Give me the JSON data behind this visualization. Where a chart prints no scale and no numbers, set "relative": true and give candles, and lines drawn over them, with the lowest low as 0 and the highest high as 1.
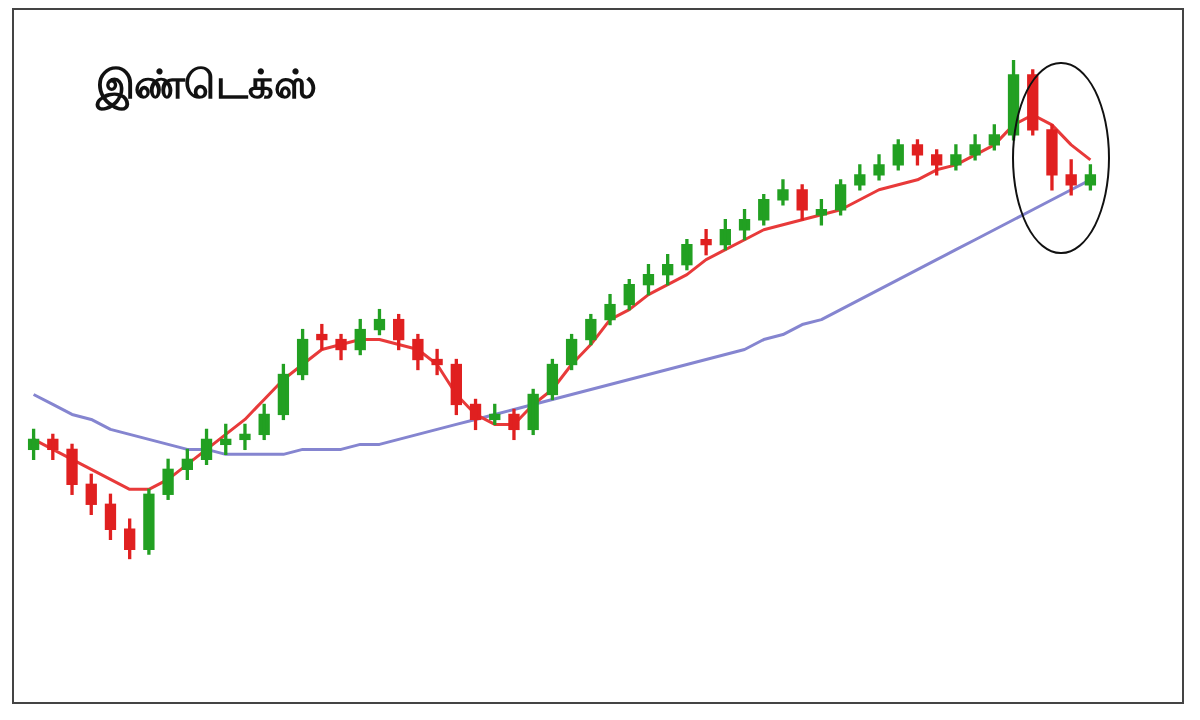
{
  "chart_data": {
    "type": "candlestick",
    "title": "இண்டெக்ஸ்",
    "relative": true,
    "categories": [
      null,
      null,
      null,
      null,
      null,
      null,
      null,
      null,
      null,
      null,
      null,
      null,
      null,
      null,
      null,
      null,
      null,
      null,
      null,
      null,
      null,
      null,
      null,
      null,
      null,
      null,
      null,
      null,
      null,
      null,
      null,
      null,
      null,
      null,
      null,
      null,
      null,
      null,
      null,
      null,
      null,
      null,
      null,
      null,
      null,
      null,
      null,
      null,
      null,
      null,
      null,
      null,
      null,
      null,
      null,
      null
    ],
    "series": [
      {
        "type": "candlestick",
        "ohlc": [
          [
            0.22,
            0.26,
            0.2,
            0.24
          ],
          [
            0.24,
            0.25,
            0.2,
            0.22
          ],
          [
            0.22,
            0.23,
            0.13,
            0.15
          ],
          [
            0.15,
            0.17,
            0.09,
            0.11
          ],
          [
            0.11,
            0.13,
            0.04,
            0.06
          ],
          [
            0.06,
            0.08,
            0,
            0.02
          ],
          [
            0.02,
            0.14,
            0.01,
            0.13
          ],
          [
            0.13,
            0.2,
            0.12,
            0.18
          ],
          [
            0.18,
            0.22,
            0.16,
            0.2
          ],
          [
            0.2,
            0.26,
            0.19,
            0.24
          ],
          [
            0.23,
            0.27,
            0.21,
            0.24
          ],
          [
            0.24,
            0.27,
            0.22,
            0.25
          ],
          [
            0.25,
            0.31,
            0.24,
            0.29
          ],
          [
            0.29,
            0.39,
            0.28,
            0.37
          ],
          [
            0.37,
            0.46,
            0.36,
            0.44
          ],
          [
            0.45,
            0.47,
            0.42,
            0.44
          ],
          [
            0.44,
            0.45,
            0.4,
            0.42
          ],
          [
            0.42,
            0.48,
            0.41,
            0.46
          ],
          [
            0.46,
            0.5,
            0.45,
            0.48
          ],
          [
            0.48,
            0.49,
            0.42,
            0.44
          ],
          [
            0.44,
            0.45,
            0.38,
            0.4
          ],
          [
            0.4,
            0.42,
            0.37,
            0.39
          ],
          [
            0.39,
            0.4,
            0.29,
            0.31
          ],
          [
            0.31,
            0.32,
            0.26,
            0.28
          ],
          [
            0.28,
            0.31,
            0.27,
            0.29
          ],
          [
            0.29,
            0.3,
            0.24,
            0.26
          ],
          [
            0.26,
            0.34,
            0.25,
            0.33
          ],
          [
            0.33,
            0.4,
            0.32,
            0.39
          ],
          [
            0.39,
            0.45,
            0.38,
            0.44
          ],
          [
            0.44,
            0.49,
            0.43,
            0.48
          ],
          [
            0.48,
            0.53,
            0.47,
            0.51
          ],
          [
            0.51,
            0.56,
            0.5,
            0.55
          ],
          [
            0.55,
            0.59,
            0.53,
            0.57
          ],
          [
            0.57,
            0.61,
            0.55,
            0.59
          ],
          [
            0.59,
            0.64,
            0.58,
            0.63
          ],
          [
            0.64,
            0.66,
            0.61,
            0.63
          ],
          [
            0.63,
            0.68,
            0.62,
            0.66
          ],
          [
            0.66,
            0.7,
            0.64,
            0.68
          ],
          [
            0.68,
            0.73,
            0.67,
            0.72
          ],
          [
            0.72,
            0.76,
            0.71,
            0.74
          ],
          [
            0.74,
            0.75,
            0.68,
            0.7
          ],
          [
            0.69,
            0.72,
            0.67,
            0.7
          ],
          [
            0.7,
            0.76,
            0.69,
            0.75
          ],
          [
            0.75,
            0.79,
            0.74,
            0.77
          ],
          [
            0.77,
            0.81,
            0.76,
            0.79
          ],
          [
            0.79,
            0.84,
            0.78,
            0.83
          ],
          [
            0.83,
            0.84,
            0.79,
            0.81
          ],
          [
            0.81,
            0.82,
            0.77,
            0.79
          ],
          [
            0.79,
            0.83,
            0.78,
            0.81
          ],
          [
            0.81,
            0.85,
            0.8,
            0.83
          ],
          [
            0.83,
            0.87,
            0.82,
            0.85
          ],
          [
            0.85,
            1,
            0.84,
            0.97
          ],
          [
            0.97,
            0.98,
            0.85,
            0.86
          ],
          [
            0.86,
            0.87,
            0.74,
            0.77
          ],
          [
            0.77,
            0.8,
            0.73,
            0.75
          ],
          [
            0.75,
            0.79,
            0.74,
            0.77
          ]
        ],
        "colors": [
          "#22a022",
          "#e02020",
          "#e02020",
          "#e02020",
          "#e02020",
          "#e02020",
          "#22a022",
          "#22a022",
          "#22a022",
          "#22a022",
          "#22a022",
          "#22a022",
          "#22a022",
          "#22a022",
          "#22a022",
          "#e02020",
          "#e02020",
          "#22a022",
          "#22a022",
          "#e02020",
          "#e02020",
          "#e02020",
          "#e02020",
          "#e02020",
          "#22a022",
          "#e02020",
          "#22a022",
          "#22a022",
          "#22a022",
          "#22a022",
          "#22a022",
          "#22a022",
          "#22a022",
          "#22a022",
          "#22a022",
          "#e02020",
          "#22a022",
          "#22a022",
          "#22a022",
          "#22a022",
          "#e02020",
          "#22a022",
          "#22a022",
          "#22a022",
          "#22a022",
          "#22a022",
          "#e02020",
          "#e02020",
          "#22a022",
          "#22a022",
          "#22a022",
          "#22a022",
          "#e02020",
          "#e02020",
          "#e02020",
          "#22a022"
        ]
      },
      {
        "type": "line",
        "color": "#e83a3a",
        "values": [
          0.24,
          0.22,
          0.2,
          0.18,
          0.16,
          0.14,
          0.14,
          0.16,
          0.19,
          0.22,
          0.25,
          0.28,
          0.32,
          0.36,
          0.39,
          0.42,
          0.43,
          0.44,
          0.44,
          0.43,
          0.42,
          0.39,
          0.33,
          0.29,
          0.27,
          0.27,
          0.31,
          0.34,
          0.39,
          0.43,
          0.48,
          0.5,
          0.53,
          0.55,
          0.57,
          0.6,
          0.62,
          0.64,
          0.66,
          0.67,
          0.68,
          0.69,
          0.7,
          0.72,
          0.74,
          0.75,
          0.76,
          0.78,
          0.79,
          0.81,
          0.83,
          0.87,
          0.89,
          0.87,
          0.83,
          0.8
        ]
      },
      {
        "type": "line",
        "color": "#8585d0",
        "values": [
          0.33,
          0.31,
          0.29,
          0.28,
          0.26,
          0.25,
          0.24,
          0.23,
          0.22,
          0.22,
          0.21,
          0.21,
          0.21,
          0.21,
          0.22,
          0.22,
          0.22,
          0.23,
          0.23,
          0.24,
          0.25,
          0.26,
          0.27,
          0.28,
          0.29,
          0.3,
          0.31,
          0.32,
          0.33,
          0.34,
          0.35,
          0.36,
          0.37,
          0.38,
          0.39,
          0.4,
          0.41,
          0.42,
          0.44,
          0.45,
          0.47,
          0.48,
          0.5,
          0.52,
          0.54,
          0.56,
          0.58,
          0.6,
          0.62,
          0.64,
          0.66,
          0.68,
          0.7,
          0.72,
          0.74,
          0.76
        ]
      }
    ]
  }
}
